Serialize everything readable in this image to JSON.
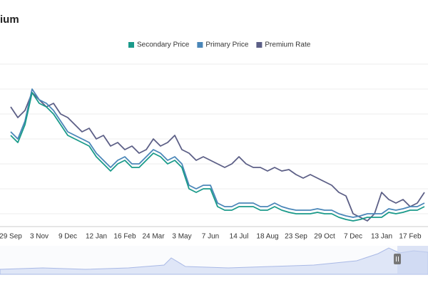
{
  "chart_data": {
    "type": "line",
    "title": "ium",
    "categories": [
      "29 Sep",
      null,
      null,
      null,
      "3 Nov",
      null,
      null,
      null,
      "9 Dec",
      null,
      null,
      null,
      "12 Jan",
      null,
      null,
      null,
      "16 Feb",
      null,
      null,
      null,
      "24 Mar",
      null,
      null,
      null,
      "3 May",
      null,
      null,
      null,
      "7 Jun",
      null,
      null,
      null,
      "14 Jul",
      null,
      null,
      null,
      "18 Aug",
      null,
      null,
      null,
      "23 Sep",
      null,
      null,
      null,
      "29 Oct",
      null,
      null,
      null,
      "7 Dec",
      null,
      null,
      null,
      "13 Jan",
      null,
      null,
      null,
      "17 Feb",
      null,
      null
    ],
    "series": [
      {
        "name": "Secondary Price",
        "color": "#1a9a8a",
        "values": [
          70,
          65,
          77.5,
          100,
          92.5,
          90,
          85,
          77.5,
          70,
          67.5,
          65,
          62.5,
          55,
          50,
          45,
          50,
          52.5,
          47.5,
          47.5,
          52.5,
          57.5,
          55,
          50,
          52.5,
          47.5,
          32.5,
          30,
          32.5,
          32.5,
          20,
          17.5,
          17.5,
          20,
          20,
          20,
          17.5,
          17.5,
          20,
          17.5,
          16,
          15,
          15,
          15,
          16,
          15,
          15,
          12.5,
          11,
          10,
          11,
          12.5,
          12.5,
          12.5,
          16,
          15,
          16,
          17.5,
          17.5,
          20
        ]
      },
      {
        "name": "Primary Price",
        "color": "#4a86b8",
        "values": [
          72.5,
          67.5,
          80,
          102.5,
          95,
          92.5,
          87.5,
          80,
          72.5,
          70,
          67.5,
          65,
          57.5,
          52.5,
          47.5,
          52.5,
          55,
          50,
          50,
          55,
          60,
          57.5,
          52.5,
          55,
          50,
          35,
          32.5,
          35,
          35,
          22.5,
          20,
          20,
          22.5,
          22.5,
          22.5,
          20,
          20,
          22.5,
          20,
          18.5,
          17.5,
          17.5,
          17.5,
          18.5,
          17.5,
          17.5,
          15,
          13.5,
          12.5,
          13.5,
          15,
          15,
          15,
          18.5,
          17.5,
          18.5,
          20,
          20,
          22.5
        ]
      },
      {
        "name": "Premium Rate",
        "color": "#5c5f86",
        "values": [
          90,
          82.5,
          87.5,
          100,
          95,
          90,
          92.5,
          85,
          82.5,
          77.5,
          72.5,
          75,
          67.5,
          70,
          62.5,
          65,
          60,
          62.5,
          57.5,
          60,
          67.5,
          62.5,
          65,
          70,
          60,
          57.5,
          52.5,
          55,
          52.5,
          50,
          47.5,
          50,
          55,
          50,
          47.5,
          47.5,
          45,
          47.5,
          45,
          46,
          42.5,
          40,
          42.5,
          40,
          37.5,
          35,
          30,
          27.5,
          15,
          12.5,
          10,
          15,
          30,
          25,
          22.5,
          25,
          20,
          22.5,
          30
        ]
      }
    ],
    "ylim": [
      0,
      120
    ]
  }
}
